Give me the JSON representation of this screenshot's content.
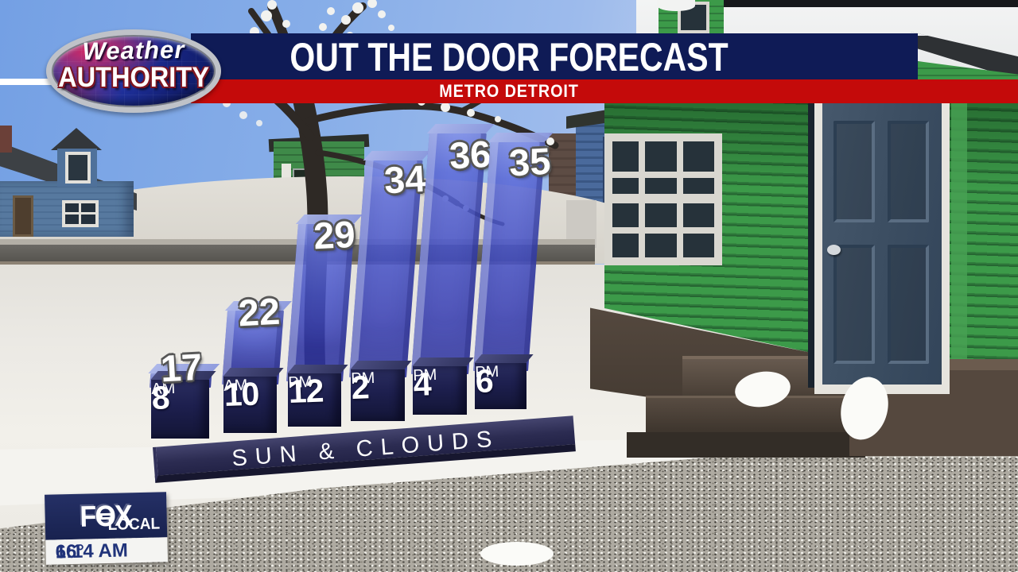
{
  "header": {
    "title": "OUT THE DOOR FORECAST",
    "subtitle": "METRO DETROIT"
  },
  "logo": {
    "line1": "Weather",
    "line2": "AUTHORITY"
  },
  "station": {
    "brand": "FOX",
    "sub_brand": "LOCAL",
    "clock_time": "6:14 AM",
    "current_temp": "16°"
  },
  "chart_data": {
    "type": "bar",
    "title": "OUT THE DOOR FORECAST",
    "subtitle": "METRO DETROIT",
    "condition": "SUN & CLOUDS",
    "categories": [
      "8 AM",
      "10 AM",
      "12 PM",
      "2 PM",
      "4 PM",
      "6 PM"
    ],
    "values": [
      17,
      22,
      29,
      34,
      36,
      35
    ],
    "legend": "none",
    "grid": false
  },
  "colors": {
    "header_navy": "#0f1b56",
    "header_red": "#c40a0a",
    "bar_blue": "#4854ca",
    "cube_navy": "#1d1f4e",
    "badge_navy": "#18224f"
  }
}
